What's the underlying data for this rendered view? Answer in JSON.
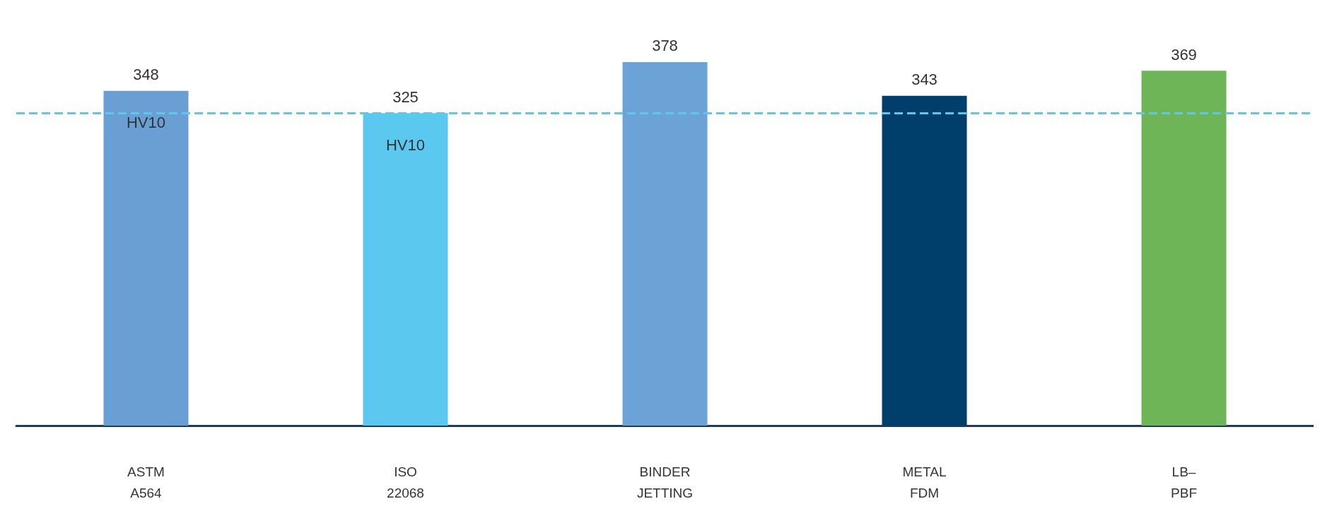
{
  "chart_data": {
    "type": "bar",
    "categories": [
      "ASTM\nA564",
      "ISO\n22068",
      "BINDER\nJETTING",
      "METAL\nFDM",
      "LB–\nPBF"
    ],
    "values": [
      348,
      325,
      378,
      343,
      369
    ],
    "colors": [
      "#6a9fd4",
      "#5bc8ef",
      "#6ba3d6",
      "#003f6b",
      "#6db556"
    ],
    "data_labels": true,
    "ref_lines": [
      {
        "axis": "y",
        "value": 325,
        "color": "#5bc8ef",
        "line_style": "dashed"
      }
    ],
    "annotations": [
      "HV10",
      "HV10"
    ],
    "grid": false
  }
}
